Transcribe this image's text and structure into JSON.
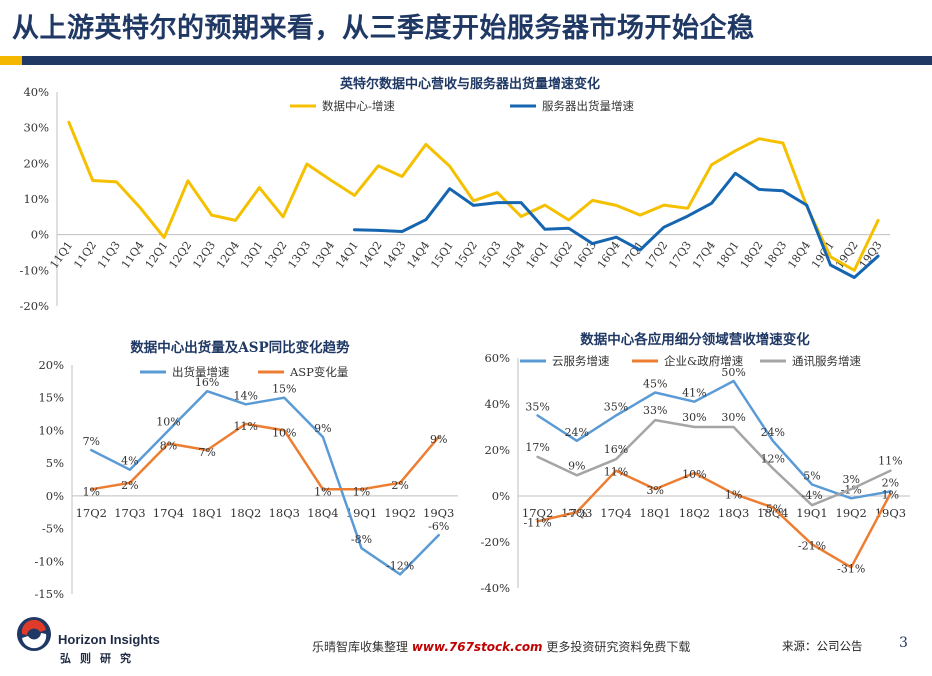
{
  "slide": {
    "title": "从上游英特尔的预期来看，从三季度开始服务器市场开始企稳",
    "source": "来源：公司公告",
    "page_number": "3",
    "watermark_prefix": "乐晴智库收集整理 ",
    "watermark_url": "www.767stock.com",
    "watermark_suffix": " 更多投资研究资料免费下载",
    "logo_name": "Horizon Insights",
    "logo_cn": "弘则研究",
    "colors": {
      "navy": "#1f3864",
      "yellow": "#f5b800"
    }
  },
  "chart_data": [
    {
      "type": "line",
      "title": "英特尔数据中心营收与服务器出货量增速变化",
      "categories": [
        "11Q1",
        "11Q2",
        "11Q3",
        "11Q4",
        "12Q1",
        "12Q2",
        "12Q3",
        "12Q4",
        "13Q1",
        "13Q2",
        "13Q3",
        "13Q4",
        "14Q1",
        "14Q2",
        "14Q3",
        "14Q4",
        "15Q1",
        "15Q2",
        "15Q3",
        "15Q4",
        "16Q1",
        "16Q2",
        "16Q3",
        "16Q4",
        "17Q1",
        "17Q2",
        "17Q3",
        "17Q4",
        "18Q1",
        "18Q2",
        "18Q3",
        "18Q4",
        "19Q1",
        "19Q2",
        "19Q3"
      ],
      "y_ticks": [
        "40%",
        "30%",
        "20%",
        "10%",
        "0%",
        "-10%",
        "-20%"
      ],
      "ylim": [
        -20,
        40
      ],
      "series": [
        {
          "name": "数据中心-增速",
          "color": "#f5c000",
          "values": [
            31.5,
            15.2,
            14.8,
            7.5,
            -0.8,
            15.1,
            5.5,
            4.0,
            13.2,
            5.0,
            19.8,
            15.3,
            11.0,
            19.3,
            16.3,
            25.3,
            19.2,
            9.5,
            11.8,
            5.1,
            8.3,
            4.1,
            9.6,
            8.2,
            5.5,
            8.3,
            7.4,
            19.6,
            23.5,
            26.9,
            25.7,
            8.0,
            -6.2,
            -10.0,
            4.0
          ]
        },
        {
          "name": "服务器出货量增速",
          "color": "#1565b0",
          "values": [
            null,
            null,
            null,
            null,
            null,
            null,
            null,
            null,
            null,
            null,
            null,
            null,
            1.4,
            1.2,
            0.9,
            4.2,
            12.9,
            8.2,
            9.0,
            9.0,
            1.5,
            1.8,
            -2.5,
            -0.7,
            -4.3,
            2.1,
            5.2,
            8.8,
            17.2,
            12.7,
            12.3,
            8.3,
            -8.5,
            -12.0,
            -6.0
          ]
        }
      ]
    },
    {
      "type": "line",
      "title": "数据中心出货量及ASP同比变化趋势",
      "categories": [
        "17Q2",
        "17Q3",
        "17Q4",
        "18Q1",
        "18Q2",
        "18Q3",
        "18Q4",
        "19Q1",
        "19Q2",
        "19Q3"
      ],
      "y_ticks": [
        "20%",
        "15%",
        "10%",
        "5%",
        "0%",
        "-5%",
        "-10%",
        "-15%"
      ],
      "ylim": [
        -15,
        20
      ],
      "series": [
        {
          "name": "出货量增速",
          "color": "#5b9bd5",
          "values": [
            7,
            4,
            10,
            16,
            14,
            15,
            9,
            -8,
            -12,
            -6
          ],
          "labels": [
            "7%",
            "4%",
            "10%",
            "16%",
            "14%",
            "15%",
            "9%",
            "-8%",
            "-12%",
            "-6%"
          ]
        },
        {
          "name": "ASP变化量",
          "color": "#ed7d31",
          "values": [
            1,
            2,
            8,
            7,
            11,
            10,
            1,
            1,
            2,
            9
          ],
          "labels": [
            "1%",
            "2%",
            "8%",
            "7%",
            "11%",
            "10%",
            "1%",
            "1%",
            "2%",
            "9%"
          ]
        }
      ]
    },
    {
      "type": "line",
      "title": "数据中心各应用细分领域营收增速变化",
      "categories": [
        "17Q2",
        "17Q3",
        "17Q4",
        "18Q1",
        "18Q2",
        "18Q3",
        "18Q4",
        "19Q1",
        "19Q2",
        "19Q3"
      ],
      "y_ticks": [
        "60%",
        "40%",
        "20%",
        "0%",
        "-20%",
        "-40%"
      ],
      "ylim": [
        -40,
        60
      ],
      "series": [
        {
          "name": "云服务增速",
          "color": "#5b9bd5",
          "values": [
            35,
            24,
            35,
            45,
            41,
            50,
            24,
            5,
            -1,
            2
          ],
          "labels": [
            "35%",
            "24%",
            "35%",
            "45%",
            "41%",
            "50%",
            "24%",
            "5%",
            "-1%",
            "2%"
          ]
        },
        {
          "name": "企业&政府增速",
          "color": "#ed7d31",
          "values": [
            -11,
            -7,
            11,
            3,
            10,
            1,
            -5,
            -21,
            -31,
            1
          ],
          "labels": [
            "-11%",
            "-7%",
            "11%",
            "3%",
            "10%",
            "1%",
            "-5%",
            "-21%",
            "-31%",
            "1%"
          ]
        },
        {
          "name": "通讯服务增速",
          "color": "#a5a5a5",
          "values": [
            17,
            9,
            16,
            33,
            30,
            30,
            12,
            -4,
            3,
            11
          ],
          "labels": [
            "17%",
            "9%",
            "16%",
            "33%",
            "30%",
            "30%",
            "12%",
            "-4%",
            "3%",
            "11%"
          ]
        }
      ]
    }
  ]
}
